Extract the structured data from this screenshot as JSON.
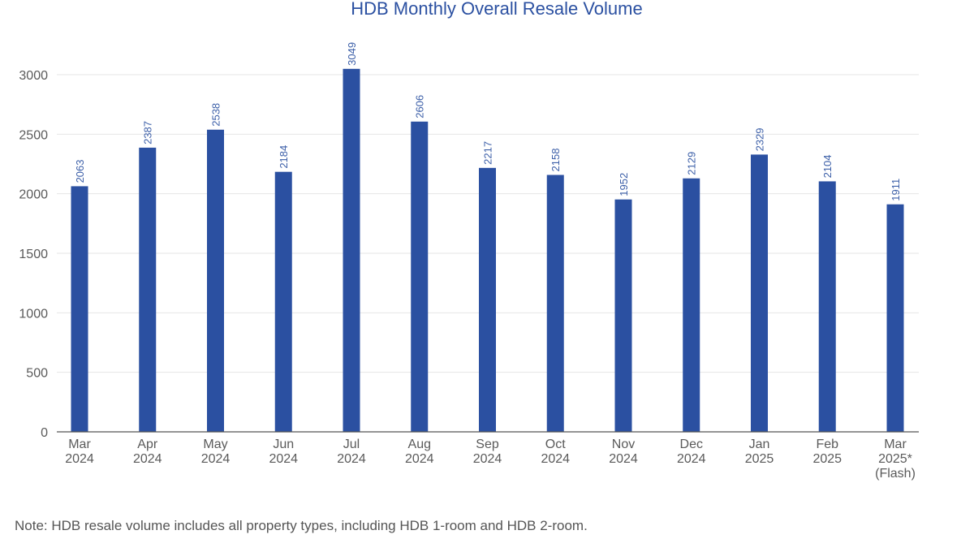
{
  "colors": {
    "bar": "#2b50a1",
    "title": "#2b50a1",
    "data_label": "#3c5fa8",
    "axis_text": "#5a5a5a",
    "grid": "#e6e6e6",
    "axis_line": "#555555"
  },
  "chart_data": {
    "type": "bar",
    "title": "HDB Monthly Overall Resale Volume",
    "xlabel": "",
    "ylabel": "",
    "ylim": [
      0,
      3000
    ],
    "yticks": [
      0,
      500,
      1000,
      1500,
      2000,
      2500,
      3000
    ],
    "grid": true,
    "categories": [
      [
        "Mar",
        "2024"
      ],
      [
        "Apr",
        "2024"
      ],
      [
        "May",
        "2024"
      ],
      [
        "Jun",
        "2024"
      ],
      [
        "Jul",
        "2024"
      ],
      [
        "Aug",
        "2024"
      ],
      [
        "Sep",
        "2024"
      ],
      [
        "Oct",
        "2024"
      ],
      [
        "Nov",
        "2024"
      ],
      [
        "Dec",
        "2024"
      ],
      [
        "Jan",
        "2025"
      ],
      [
        "Feb",
        "2025"
      ],
      [
        "Mar",
        "2025*",
        "(Flash)"
      ]
    ],
    "values": [
      2063,
      2387,
      2538,
      2184,
      3049,
      2606,
      2217,
      2158,
      1952,
      2129,
      2329,
      2104,
      1911
    ],
    "data_labels": [
      "2063",
      "2387",
      "2538",
      "2184",
      "3049",
      "2606",
      "2217",
      "2158",
      "1952",
      "2129",
      "2329",
      "2104",
      "1911"
    ]
  },
  "footer": {
    "note": "Note: HDB resale volume includes all property types, including HDB 1-room and HDB 2-room."
  }
}
